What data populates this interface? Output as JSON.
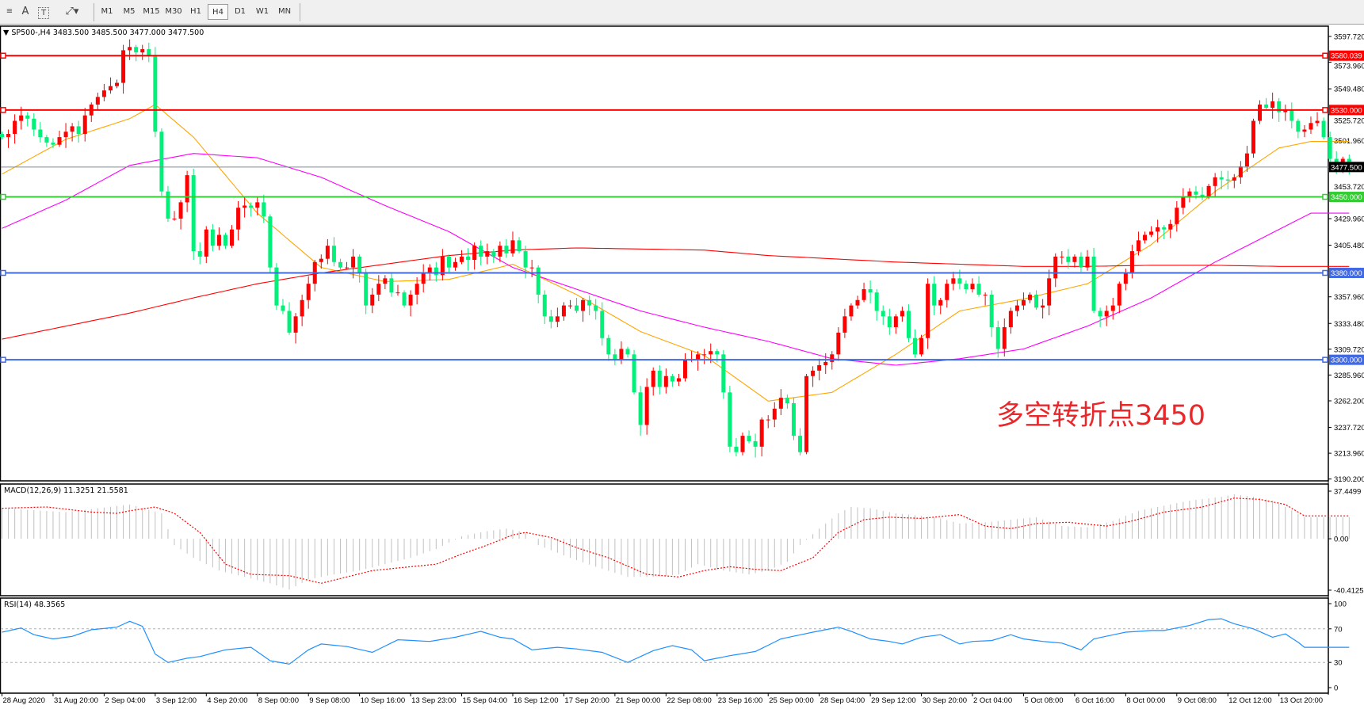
{
  "toolbar": {
    "tools": [
      {
        "icon": "horizontal-lines-icon"
      },
      {
        "icon": "text-icon",
        "label": "A"
      },
      {
        "icon": "text-label-icon",
        "label": "T"
      },
      {
        "icon": "arrows-icon"
      }
    ],
    "timeframes": [
      "M1",
      "M5",
      "M15",
      "M30",
      "H1",
      "H4",
      "D1",
      "W1",
      "MN"
    ],
    "active_timeframe": "H4"
  },
  "main": {
    "title": "SP500-,H4  3483.500 3485.500 3477.000 3477.500",
    "annotation": "多空转折点3450"
  },
  "macd": {
    "title": "MACD(12,26,9) 11.3251 21.5581"
  },
  "rsi": {
    "title": "RSI(14) 48.3565"
  },
  "colors": {
    "bull": "#ff0000",
    "bear": "#00f07a",
    "ma_fast": "#ffa500",
    "ma_mid": "#ff00ff",
    "ma_slow": "#ff0000",
    "macd_hist": "#c0c0c0",
    "macd_signal": "#ff0000",
    "rsi": "#1e90ff"
  },
  "chart_data": {
    "type": "candlestick",
    "symbol": "SP500-",
    "timeframe": "H4",
    "price_axis": {
      "range": [
        3190.2,
        3597.72
      ],
      "ticks": [
        "3597.720",
        "3573.960",
        "3549.480",
        "3525.720",
        "3501.960",
        "3453.720",
        "3429.960",
        "3405.480",
        "3357.960",
        "3333.480",
        "3309.720",
        "3285.960",
        "3262.200",
        "3237.720",
        "3213.960",
        "3190.200"
      ]
    },
    "date_labels": [
      "28 Aug 2020",
      "31 Aug 20:00",
      "2 Sep 04:00",
      "3 Sep 12:00",
      "4 Sep 20:00",
      "8 Sep 00:00",
      "9 Sep 08:00",
      "10 Sep 16:00",
      "13 Sep 23:00",
      "15 Sep 04:00",
      "16 Sep 12:00",
      "17 Sep 20:00",
      "21 Sep 00:00",
      "22 Sep 08:00",
      "23 Sep 16:00",
      "25 Sep 00:00",
      "28 Sep 04:00",
      "29 Sep 12:00",
      "30 Sep 20:00",
      "2 Oct 04:00",
      "5 Oct 08:00",
      "6 Oct 16:00",
      "8 Oct 00:00",
      "9 Oct 08:00",
      "12 Oct 12:00",
      "13 Oct 20:00"
    ],
    "close": [
      3505,
      3508,
      3520,
      3525,
      3522,
      3512,
      3505,
      3500,
      3498,
      3505,
      3510,
      3515,
      3508,
      3525,
      3535,
      3542,
      3548,
      3552,
      3555,
      3585,
      3588,
      3583,
      3586,
      3580,
      3510,
      3455,
      3430,
      3430,
      3445,
      3470,
      3400,
      3395,
      3420,
      3405,
      3415,
      3405,
      3420,
      3440,
      3442,
      3440,
      3445,
      3432,
      3385,
      3350,
      3345,
      3325,
      3340,
      3355,
      3370,
      3390,
      3393,
      3405,
      3390,
      3385,
      3385,
      3395,
      3380,
      3350,
      3360,
      3370,
      3375,
      3362,
      3362,
      3350,
      3360,
      3370,
      3380,
      3385,
      3378,
      3395,
      3385,
      3390,
      3395,
      3392,
      3405,
      3395,
      3400,
      3395,
      3405,
      3398,
      3410,
      3400,
      3385,
      3385,
      3360,
      3340,
      3335,
      3340,
      3350,
      3350,
      3345,
      3355,
      3350,
      3345,
      3320,
      3305,
      3300,
      3310,
      3305,
      3270,
      3240,
      3275,
      3290,
      3275,
      3285,
      3280,
      3283,
      3300,
      3300,
      3305,
      3305,
      3308,
      3305,
      3270,
      3220,
      3215,
      3230,
      3225,
      3220,
      3245,
      3245,
      3255,
      3265,
      3260,
      3230,
      3215,
      3285,
      3290,
      3295,
      3298,
      3305,
      3325,
      3340,
      3350,
      3355,
      3365,
      3362,
      3345,
      3340,
      3330,
      3340,
      3345,
      3320,
      3305,
      3320,
      3370,
      3350,
      3355,
      3370,
      3375,
      3370,
      3365,
      3370,
      3360,
      3360,
      3330,
      3310,
      3330,
      3345,
      3350,
      3355,
      3360,
      3348,
      3350,
      3375,
      3395,
      3395,
      3390,
      3395,
      3385,
      3395,
      3345,
      3340,
      3345,
      3350,
      3370,
      3380,
      3400,
      3410,
      3415,
      3418,
      3422,
      3420,
      3425,
      3440,
      3450,
      3455,
      3452,
      3450,
      3460,
      3468,
      3466,
      3465,
      3468,
      3478,
      3490,
      3520,
      3535,
      3532,
      3538,
      3528,
      3530,
      3520,
      3510,
      3512,
      3518,
      3520,
      3505,
      3485,
      3480,
      3485,
      3477.5
    ],
    "moving_averages": [
      {
        "color": "#ffa500",
        "points": [
          [
            0,
            3471
          ],
          [
            10,
            3503
          ],
          [
            20,
            3522
          ],
          [
            24,
            3535
          ],
          [
            30,
            3505
          ],
          [
            40,
            3435
          ],
          [
            50,
            3385
          ],
          [
            60,
            3372
          ],
          [
            70,
            3374
          ],
          [
            80,
            3388
          ],
          [
            90,
            3360
          ],
          [
            100,
            3326
          ],
          [
            110,
            3304
          ],
          [
            120,
            3262
          ],
          [
            130,
            3270
          ],
          [
            140,
            3305
          ],
          [
            150,
            3345
          ],
          [
            160,
            3356
          ],
          [
            170,
            3370
          ],
          [
            180,
            3406
          ],
          [
            190,
            3455
          ],
          [
            200,
            3495
          ],
          [
            205,
            3501
          ]
        ]
      },
      {
        "color": "#ff00ff",
        "points": [
          [
            0,
            3421
          ],
          [
            10,
            3447
          ],
          [
            20,
            3479
          ],
          [
            30,
            3490
          ],
          [
            40,
            3486
          ],
          [
            50,
            3468
          ],
          [
            60,
            3442
          ],
          [
            70,
            3418
          ],
          [
            80,
            3385
          ],
          [
            90,
            3365
          ],
          [
            100,
            3345
          ],
          [
            110,
            3330
          ],
          [
            120,
            3317
          ],
          [
            130,
            3301
          ],
          [
            140,
            3295
          ],
          [
            150,
            3301
          ],
          [
            160,
            3310
          ],
          [
            170,
            3331
          ],
          [
            180,
            3357
          ],
          [
            190,
            3390
          ],
          [
            200,
            3420
          ],
          [
            205,
            3435
          ]
        ]
      },
      {
        "color": "#ff0000",
        "points": [
          [
            0,
            3319
          ],
          [
            10,
            3331
          ],
          [
            20,
            3343
          ],
          [
            30,
            3357
          ],
          [
            40,
            3370
          ],
          [
            50,
            3380
          ],
          [
            60,
            3388
          ],
          [
            70,
            3396
          ],
          [
            80,
            3401
          ],
          [
            90,
            3403
          ],
          [
            100,
            3402
          ],
          [
            110,
            3401
          ],
          [
            120,
            3396
          ],
          [
            130,
            3393
          ],
          [
            140,
            3390
          ],
          [
            150,
            3388
          ],
          [
            160,
            3386
          ],
          [
            170,
            3386
          ],
          [
            180,
            3387
          ],
          [
            190,
            3387
          ],
          [
            200,
            3386
          ],
          [
            205,
            3386
          ]
        ]
      }
    ],
    "horizontal_lines": [
      {
        "price": "3580.039",
        "color": "#ff0000"
      },
      {
        "price": "3530.000",
        "color": "#ff0000"
      },
      {
        "price": "3477.500",
        "color": "#808a90",
        "label_bg": "#000000"
      },
      {
        "price": "3450.000",
        "color": "#33cc33"
      },
      {
        "price": "3380.000",
        "color": "#4169e1"
      },
      {
        "price": "3300.000",
        "color": "#4169e1"
      }
    ],
    "macd": {
      "range": [
        -40.4125,
        37.4499
      ],
      "ticks": [
        "37.4499",
        "0.00",
        "-40.4125"
      ],
      "histogram": [
        [
          0,
          24
        ],
        [
          10,
          21
        ],
        [
          20,
          27
        ],
        [
          25,
          20
        ],
        [
          27,
          -5
        ],
        [
          30,
          -15
        ],
        [
          34,
          -25
        ],
        [
          38,
          -30
        ],
        [
          42,
          -35
        ],
        [
          45,
          -40
        ],
        [
          48,
          -32
        ],
        [
          52,
          -28
        ],
        [
          56,
          -25
        ],
        [
          60,
          -20
        ],
        [
          64,
          -15
        ],
        [
          68,
          -8
        ],
        [
          72,
          2
        ],
        [
          76,
          6
        ],
        [
          79,
          8
        ],
        [
          82,
          5
        ],
        [
          84,
          -5
        ],
        [
          89,
          -15
        ],
        [
          93,
          -22
        ],
        [
          98,
          -30
        ],
        [
          102,
          -30
        ],
        [
          106,
          -28
        ],
        [
          109,
          -20
        ],
        [
          113,
          -25
        ],
        [
          117,
          -28
        ],
        [
          120,
          -25
        ],
        [
          123,
          -18
        ],
        [
          125,
          -5
        ],
        [
          128,
          8
        ],
        [
          131,
          20
        ],
        [
          133,
          25
        ],
        [
          136,
          24
        ],
        [
          140,
          20
        ],
        [
          144,
          18
        ],
        [
          147,
          16
        ],
        [
          150,
          12
        ],
        [
          154,
          13
        ],
        [
          158,
          15
        ],
        [
          162,
          17
        ],
        [
          166,
          10
        ],
        [
          170,
          9
        ],
        [
          174,
          14
        ],
        [
          178,
          22
        ],
        [
          182,
          26
        ],
        [
          186,
          30
        ],
        [
          191,
          33
        ],
        [
          193,
          35
        ],
        [
          196,
          33
        ],
        [
          199,
          30
        ],
        [
          201,
          25
        ],
        [
          204,
          17
        ]
      ],
      "signal": [
        [
          0,
          24
        ],
        [
          7,
          25
        ],
        [
          14,
          21
        ],
        [
          18,
          20
        ],
        [
          20,
          22
        ],
        [
          24,
          25
        ],
        [
          27,
          20
        ],
        [
          31,
          5
        ],
        [
          35,
          -20
        ],
        [
          39,
          -28
        ],
        [
          45,
          -29
        ],
        [
          50,
          -35
        ],
        [
          54,
          -30
        ],
        [
          58,
          -25
        ],
        [
          64,
          -22
        ],
        [
          68,
          -20
        ],
        [
          72,
          -12
        ],
        [
          76,
          -5
        ],
        [
          80,
          3
        ],
        [
          82,
          5
        ],
        [
          86,
          1
        ],
        [
          90,
          -7
        ],
        [
          95,
          -15
        ],
        [
          101,
          -28
        ],
        [
          106,
          -30
        ],
        [
          110,
          -25
        ],
        [
          114,
          -22
        ],
        [
          118,
          -24
        ],
        [
          122,
          -25
        ],
        [
          127,
          -15
        ],
        [
          131,
          5
        ],
        [
          135,
          15
        ],
        [
          139,
          17
        ],
        [
          144,
          16
        ],
        [
          150,
          19
        ],
        [
          154,
          10
        ],
        [
          158,
          8
        ],
        [
          162,
          12
        ],
        [
          167,
          13
        ],
        [
          173,
          10
        ],
        [
          177,
          14
        ],
        [
          182,
          21
        ],
        [
          188,
          25
        ],
        [
          193,
          32
        ],
        [
          197,
          31
        ],
        [
          201,
          27
        ],
        [
          204,
          18
        ]
      ]
    },
    "rsi": {
      "range": [
        0,
        100
      ],
      "ticks": [
        "100",
        "70",
        "30",
        "0"
      ],
      "levels": [
        70,
        30
      ],
      "values": [
        [
          0,
          66
        ],
        [
          3,
          71
        ],
        [
          5,
          63
        ],
        [
          8,
          58
        ],
        [
          11,
          61
        ],
        [
          14,
          69
        ],
        [
          18,
          72
        ],
        [
          20,
          79
        ],
        [
          22,
          73
        ],
        [
          24,
          40
        ],
        [
          26,
          30
        ],
        [
          29,
          35
        ],
        [
          31,
          37
        ],
        [
          35,
          45
        ],
        [
          39,
          48
        ],
        [
          42,
          32
        ],
        [
          45,
          28
        ],
        [
          48,
          45
        ],
        [
          50,
          52
        ],
        [
          54,
          49
        ],
        [
          58,
          42
        ],
        [
          62,
          57
        ],
        [
          67,
          55
        ],
        [
          71,
          60
        ],
        [
          75,
          67
        ],
        [
          78,
          60
        ],
        [
          80,
          58
        ],
        [
          83,
          45
        ],
        [
          87,
          48
        ],
        [
          90,
          46
        ],
        [
          94,
          42
        ],
        [
          98,
          30
        ],
        [
          102,
          44
        ],
        [
          105,
          50
        ],
        [
          108,
          45
        ],
        [
          110,
          32
        ],
        [
          114,
          38
        ],
        [
          118,
          43
        ],
        [
          122,
          58
        ],
        [
          127,
          66
        ],
        [
          131,
          72
        ],
        [
          133,
          67
        ],
        [
          136,
          58
        ],
        [
          139,
          55
        ],
        [
          141,
          52
        ],
        [
          144,
          60
        ],
        [
          147,
          63
        ],
        [
          150,
          52
        ],
        [
          152,
          55
        ],
        [
          155,
          56
        ],
        [
          158,
          63
        ],
        [
          160,
          58
        ],
        [
          163,
          55
        ],
        [
          166,
          53
        ],
        [
          169,
          45
        ],
        [
          171,
          58
        ],
        [
          176,
          66
        ],
        [
          180,
          68
        ],
        [
          182,
          68
        ],
        [
          186,
          74
        ],
        [
          189,
          81
        ],
        [
          191,
          82
        ],
        [
          193,
          76
        ],
        [
          196,
          70
        ],
        [
          199,
          60
        ],
        [
          201,
          64
        ],
        [
          203,
          54
        ],
        [
          204,
          48
        ]
      ]
    }
  }
}
